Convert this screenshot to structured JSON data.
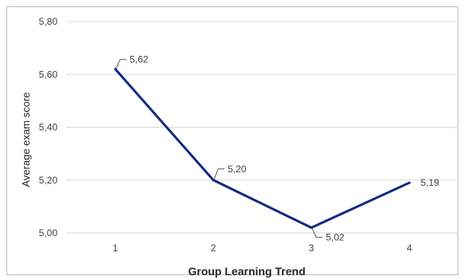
{
  "chart_data": {
    "type": "line",
    "title": "",
    "xlabel": "Group Learning Trend",
    "ylabel": "Average exam score",
    "categories": [
      "1",
      "2",
      "3",
      "4"
    ],
    "series": [
      {
        "values": [
          5.62,
          5.2,
          5.02,
          5.19
        ],
        "color": "#0f2a80"
      }
    ],
    "data_labels": [
      "5,62",
      "5,20",
      "5,02",
      "5,19"
    ],
    "ylim": [
      5.0,
      5.8
    ],
    "y_ticks": [
      5.0,
      5.2,
      5.4,
      5.6,
      5.8
    ],
    "y_tick_labels": [
      "5,00",
      "5,20",
      "5,40",
      "5,60",
      "5,80"
    ],
    "grid": true,
    "legend": "none"
  }
}
